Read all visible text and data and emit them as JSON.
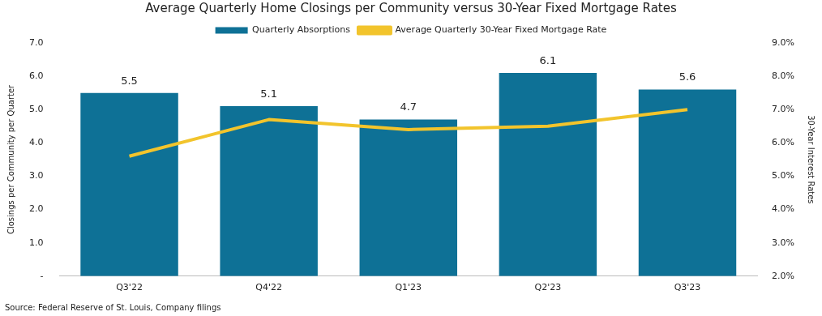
{
  "chart_data": {
    "type": "bar",
    "title": "Average Quarterly Home Closings per Community versus 30-Year Fixed Mortgage Rates",
    "ylabel": "Closings per Community per Quarter",
    "y2label": "30-Year Interest Rates",
    "categories": [
      "Q3'22",
      "Q4'22",
      "Q1'23",
      "Q2'23",
      "Q3'23"
    ],
    "series": [
      {
        "name": "Quarterly Absorptions",
        "color": "#0e7196",
        "values": [
          5.5,
          5.1,
          4.7,
          6.1,
          5.6
        ],
        "value_labels": [
          "5.5",
          "5.1",
          "4.7",
          "6.1",
          "5.6"
        ]
      },
      {
        "name": "Average Quarterly 30-Year Fixed Mortgage Rate",
        "type": "line",
        "axis": "y2",
        "color": "#f2c42c",
        "values": [
          5.6,
          6.7,
          6.4,
          6.5,
          7.0
        ]
      }
    ],
    "ylim": [
      0,
      7
    ],
    "yticks": [
      {
        "value": 0,
        "label": "-"
      },
      {
        "value": 1,
        "label": "1.0"
      },
      {
        "value": 2,
        "label": "2.0"
      },
      {
        "value": 3,
        "label": "3.0"
      },
      {
        "value": 4,
        "label": "4.0"
      },
      {
        "value": 5,
        "label": "5.0"
      },
      {
        "value": 6,
        "label": "6.0"
      },
      {
        "value": 7,
        "label": "7.0"
      }
    ],
    "y2lim": [
      2,
      9
    ],
    "y2ticks": [
      {
        "value": 2,
        "label": "2.0%"
      },
      {
        "value": 3,
        "label": "3.0%"
      },
      {
        "value": 4,
        "label": "4.0%"
      },
      {
        "value": 5,
        "label": "5.0%"
      },
      {
        "value": 6,
        "label": "6.0%"
      },
      {
        "value": 7,
        "label": "7.0%"
      },
      {
        "value": 8,
        "label": "8.0%"
      },
      {
        "value": 9,
        "label": "9.0%"
      }
    ],
    "grid": false,
    "legend": "top",
    "marker": "none",
    "annotations": [
      "Source: Federal Reserve of St. Louis, Company filings"
    ]
  }
}
